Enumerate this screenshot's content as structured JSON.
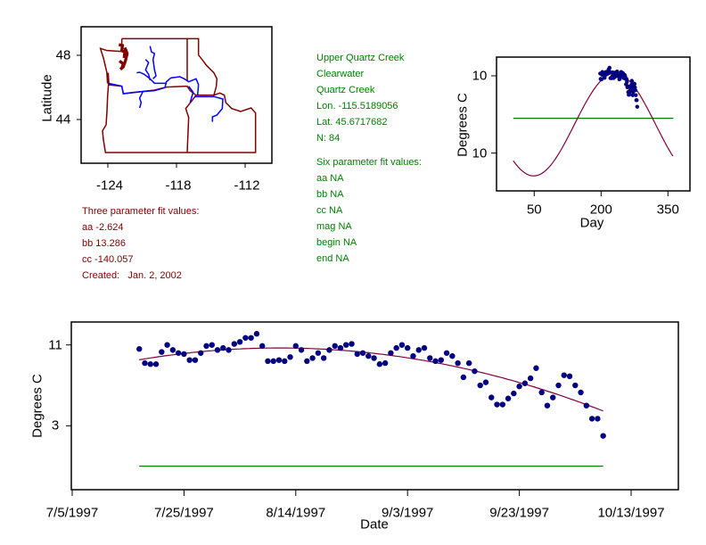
{
  "site": {
    "name": "Upper Quartz Creek",
    "basin": "Clearwater",
    "stream": "Quartz Creek",
    "lon": "Lon. -115.5189056",
    "lat": "Lat. 45.6717682",
    "n": "N: 84"
  },
  "six_param": {
    "title": "Six parameter fit values:",
    "aa": "aa NA",
    "bb": "bb NA",
    "cc": "cc NA",
    "mag": "mag NA",
    "begin": "begin NA",
    "end": "end NA"
  },
  "three_param": {
    "title": "Three parameter fit values:",
    "aa": "aa -2.624",
    "bb": "bb 13.286",
    "cc": "cc -140.057",
    "created": "Created:   Jan. 2, 2002"
  },
  "colors": {
    "points": "#000080",
    "fit": "#800040",
    "reference_line": "#008000",
    "state_borders": "#800000",
    "rivers": "#0000ff",
    "site_text": "#008000",
    "fit_text": "#800000"
  },
  "chart_data": [
    {
      "type": "map",
      "title": "",
      "xlabel": "",
      "ylabel": "Latitude",
      "x_ticks": [
        "-124",
        "-118",
        "-112"
      ],
      "y_ticks": [
        "48",
        "44"
      ],
      "layers": [
        "state-borders",
        "rivers",
        "puget-sound"
      ]
    },
    {
      "type": "scatter",
      "title": "",
      "xlabel": "Day",
      "ylabel": "Degrees C",
      "x_ticks": [
        {
          "value": 50,
          "label": "50"
        },
        {
          "value": 200,
          "label": "200"
        },
        {
          "value": 350,
          "label": "350"
        }
      ],
      "y_ticks": [
        {
          "value": 10,
          "label": "10"
        },
        {
          "value": -10,
          "label": "10"
        }
      ],
      "x_start_day": 198,
      "fit": {
        "type": "sinusoid",
        "aa": -2.624,
        "bb": 13.286,
        "cc": -140.057,
        "period": 365,
        "day_range": [
          3,
          362
        ]
      },
      "reference_line": {
        "value": -1.0,
        "day_range": [
          3,
          362
        ]
      }
    },
    {
      "type": "scatter",
      "title": "",
      "xlabel": "Date",
      "ylabel": "Degrees C",
      "x_ticks": [
        {
          "offset_days": 0,
          "label": "7/5/1997"
        },
        {
          "offset_days": 20,
          "label": "7/25/1997"
        },
        {
          "offset_days": 40,
          "label": "8/14/1997"
        },
        {
          "offset_days": 60,
          "label": "9/3/1997"
        },
        {
          "offset_days": 80,
          "label": "9/23/1997"
        },
        {
          "offset_days": 100,
          "label": "10/13/1997"
        }
      ],
      "y_ticks": [
        {
          "value": 11,
          "label": "11"
        },
        {
          "value": 3,
          "label": "3"
        }
      ],
      "first_date_offset_days": 12,
      "first_date": "7/17/1997",
      "values": [
        10.6,
        9.2,
        9.1,
        9.1,
        10.3,
        11.0,
        10.5,
        10.2,
        10.1,
        9.5,
        9.5,
        10.2,
        10.9,
        11.0,
        10.5,
        10.7,
        10.5,
        11.1,
        11.3,
        11.7,
        11.7,
        12.1,
        10.9,
        9.4,
        9.4,
        9.5,
        9.4,
        9.8,
        10.9,
        10.5,
        9.4,
        9.7,
        10.2,
        9.7,
        10.5,
        10.9,
        10.7,
        11.0,
        11.1,
        10.1,
        10.2,
        9.9,
        9.7,
        9.1,
        9.2,
        10.2,
        10.7,
        11.0,
        10.7,
        9.9,
        10.5,
        10.7,
        9.7,
        9.4,
        9.5,
        10.2,
        9.9,
        9.2,
        7.8,
        9.2,
        8.4,
        7.0,
        7.3,
        5.8,
        5.1,
        5.1,
        5.7,
        6.2,
        6.9,
        7.2,
        7.7,
        8.7,
        6.3,
        5.0,
        5.8,
        7.0,
        8.0,
        7.9,
        7.0,
        6.3,
        5.0,
        3.7,
        3.7,
        2.0
      ],
      "fit": {
        "type": "quadratic",
        "peak_index": 25.1,
        "peak_value": 10.7,
        "a": -0.00186
      },
      "reference_line": {
        "value": -1.0
      }
    }
  ]
}
